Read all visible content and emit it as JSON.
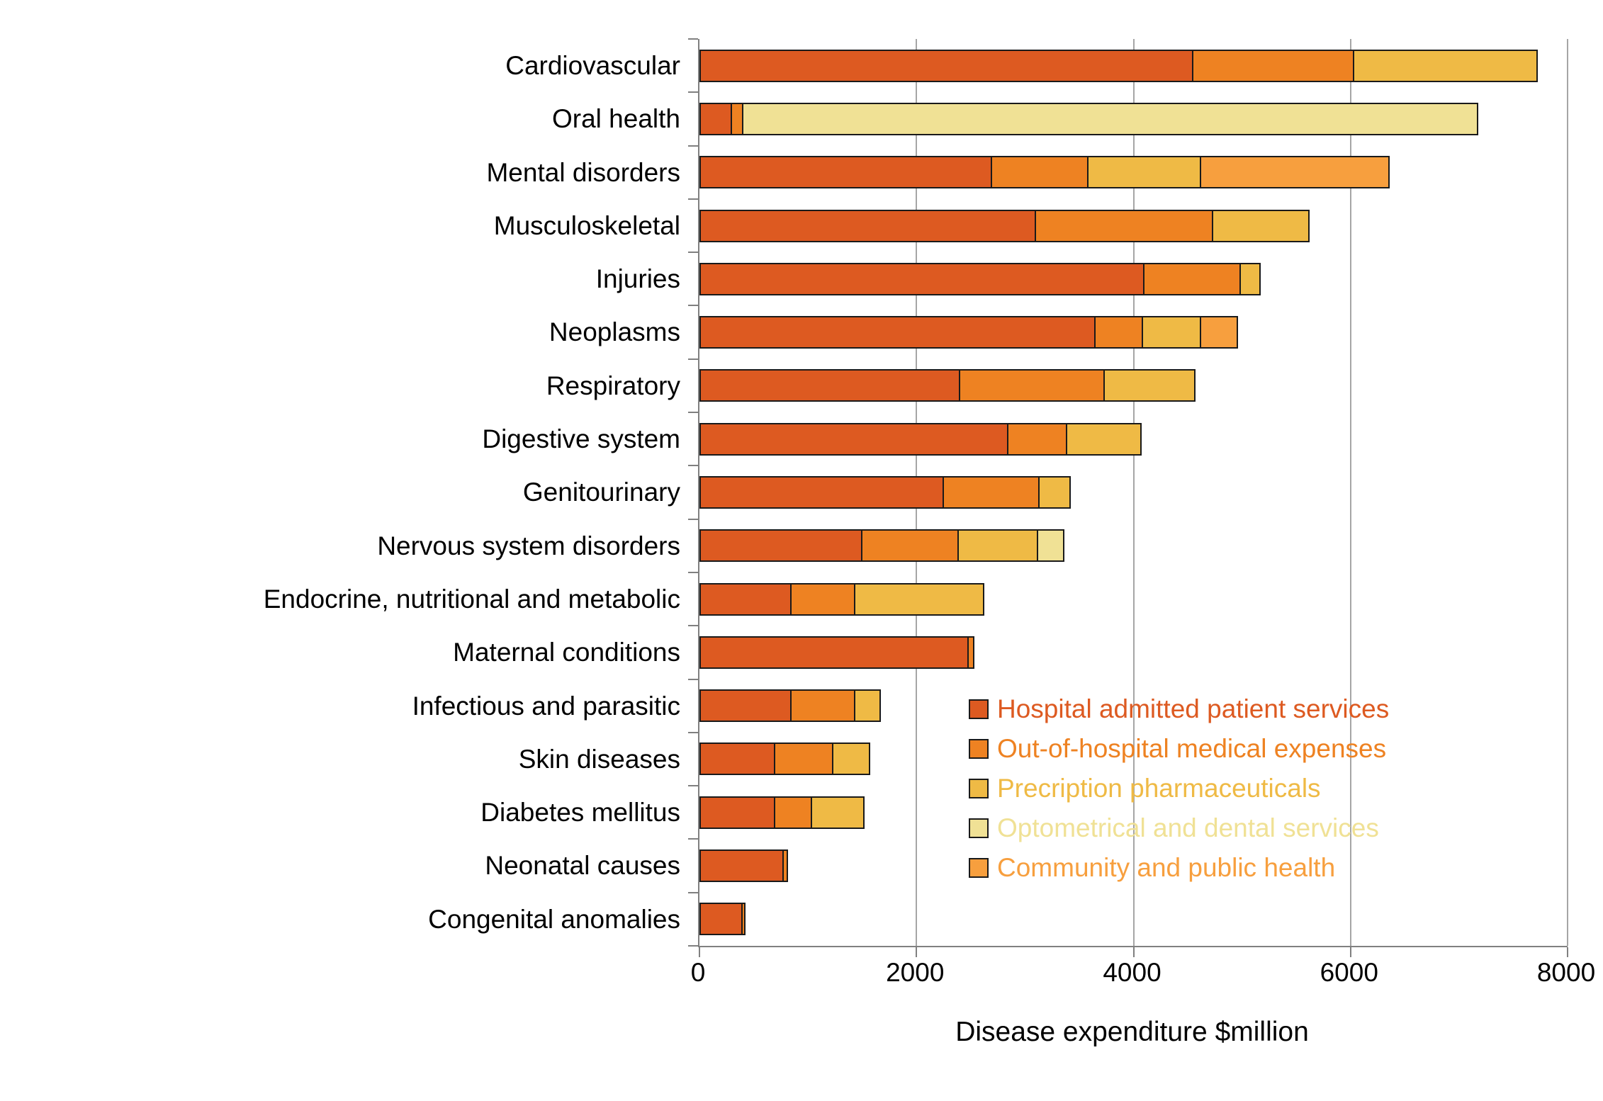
{
  "chart_data": {
    "type": "bar",
    "orientation": "horizontal",
    "stacked": true,
    "title": "",
    "xlabel": "Disease expenditure $million",
    "ylabel": "",
    "xlim": [
      0,
      8000
    ],
    "xticks": [
      0,
      2000,
      4000,
      6000,
      8000
    ],
    "grid": true,
    "legend_position": "inside-lower-right",
    "categories": [
      "Cardiovascular",
      "Oral health",
      "Mental disorders",
      "Musculoskeletal",
      "Injuries",
      "Neoplasms",
      "Respiratory",
      "Digestive system",
      "Genitourinary",
      "Nervous system disorders",
      "Endocrine, nutritional and metabolic",
      "Maternal conditions",
      "Infectious and parasitic",
      "Skin diseases",
      "Diabetes mellitus",
      "Neonatal causes",
      "Congenital anomalies"
    ],
    "series": [
      {
        "name": "Hospital admitted patient services",
        "color": "#DD5A21",
        "values": [
          4550,
          300,
          2700,
          3100,
          4100,
          3650,
          2400,
          2850,
          2250,
          1500,
          850,
          2480,
          850,
          700,
          700,
          780,
          400
        ]
      },
      {
        "name": "Out-of-hospital medical expenses",
        "color": "#EE8222",
        "values": [
          1500,
          120,
          900,
          1650,
          900,
          450,
          1350,
          550,
          900,
          900,
          600,
          70,
          600,
          550,
          350,
          50,
          40
        ]
      },
      {
        "name": "Precription pharmaceuticals",
        "color": "#EFBA45",
        "values": [
          1700,
          0,
          1050,
          900,
          200,
          550,
          850,
          700,
          300,
          750,
          1200,
          0,
          250,
          350,
          500,
          0,
          0
        ]
      },
      {
        "name": "Optometrical and dental services",
        "color": "#F0E195",
        "values": [
          0,
          6780,
          0,
          0,
          0,
          0,
          0,
          0,
          0,
          250,
          0,
          0,
          0,
          0,
          0,
          0,
          0
        ]
      },
      {
        "name": "Community and public health",
        "color": "#F79F3E",
        "values": [
          0,
          0,
          1750,
          0,
          0,
          350,
          0,
          0,
          0,
          0,
          0,
          0,
          0,
          0,
          0,
          0,
          0
        ]
      }
    ]
  }
}
